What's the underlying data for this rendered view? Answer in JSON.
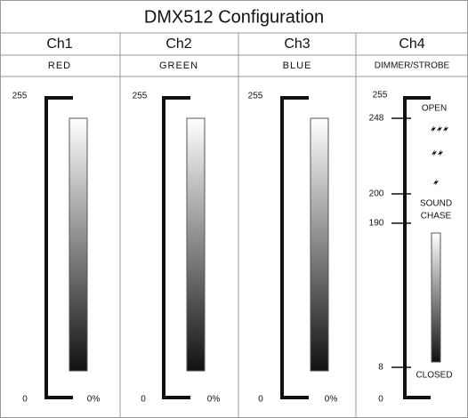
{
  "title": "DMX512 Configuration",
  "channels": [
    {
      "name": "Ch1",
      "function": "RED",
      "max": 255,
      "min": 0,
      "percent": "0%"
    },
    {
      "name": "Ch2",
      "function": "GREEN",
      "max": 255,
      "min": 0,
      "percent": "0%"
    },
    {
      "name": "Ch3",
      "function": "BLUE",
      "max": 255,
      "min": 0,
      "percent": "0%"
    },
    {
      "name": "Ch4",
      "function": "DIMMER/STROBE",
      "levels": [
        255,
        248,
        200,
        190,
        8,
        0
      ],
      "labels": [
        "OPEN",
        "SOUND",
        "CHASE",
        "CLOSED"
      ]
    }
  ]
}
